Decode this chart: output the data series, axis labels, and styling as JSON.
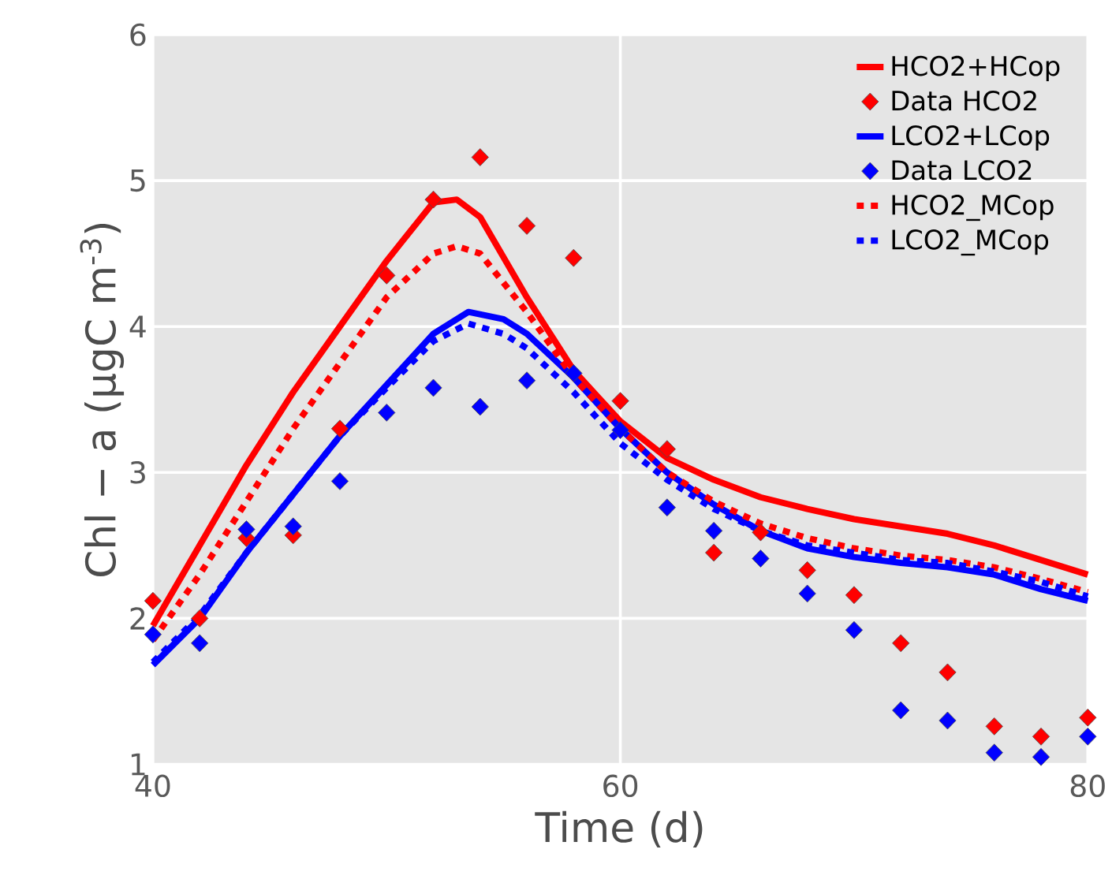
{
  "chart_data": {
    "type": "line",
    "xlabel": "Time (d)",
    "ylabel": "Chl − a (µgC m$^{-3}$)",
    "xlim": [
      40,
      80
    ],
    "ylim": [
      1,
      6
    ],
    "xticks": [
      40,
      60,
      80
    ],
    "yticks": [
      1,
      2,
      3,
      4,
      5,
      6
    ],
    "grid": true,
    "legend": "top right",
    "series": [
      {
        "name": "HCO2+HCop",
        "color": "#ff0000",
        "line_style": "solid",
        "x": [
          40,
          42,
          44,
          46,
          48,
          50,
          52,
          53,
          54,
          56,
          58,
          60,
          62,
          64,
          66,
          68,
          70,
          72,
          74,
          76,
          78,
          80
        ],
        "values": [
          1.95,
          2.5,
          3.05,
          3.55,
          4.0,
          4.45,
          4.85,
          4.87,
          4.75,
          4.2,
          3.7,
          3.35,
          3.1,
          2.95,
          2.83,
          2.75,
          2.68,
          2.63,
          2.58,
          2.5,
          2.4,
          2.3
        ]
      },
      {
        "name": "Data HCO2",
        "type": "scatter",
        "color": "#ff0000",
        "marker": "diamond",
        "x": [
          40,
          42,
          44,
          46,
          48,
          50,
          52,
          54,
          56,
          58,
          60,
          62,
          64,
          66,
          68,
          70,
          72,
          74,
          76,
          78,
          80
        ],
        "values": [
          2.12,
          2.0,
          2.55,
          2.57,
          3.3,
          4.35,
          4.87,
          5.16,
          4.69,
          4.47,
          3.49,
          3.16,
          2.45,
          2.59,
          2.33,
          2.16,
          1.83,
          1.63,
          1.26,
          1.19,
          1.32
        ]
      },
      {
        "name": "LCO2+LCop",
        "color": "#0000ff",
        "line_style": "solid",
        "x": [
          40,
          42,
          44,
          46,
          48,
          50,
          52,
          53.5,
          55,
          56,
          58,
          60,
          62,
          64,
          66,
          68,
          70,
          72,
          74,
          76,
          78,
          80
        ],
        "values": [
          1.68,
          2.0,
          2.45,
          2.85,
          3.25,
          3.6,
          3.95,
          4.1,
          4.05,
          3.95,
          3.65,
          3.3,
          3.0,
          2.78,
          2.6,
          2.48,
          2.42,
          2.38,
          2.35,
          2.3,
          2.2,
          2.12
        ]
      },
      {
        "name": "Data LCO2",
        "type": "scatter",
        "color": "#0000ff",
        "marker": "diamond",
        "x": [
          40,
          42,
          44,
          46,
          48,
          50,
          52,
          54,
          56,
          58,
          60,
          62,
          64,
          66,
          68,
          70,
          72,
          74,
          76,
          78,
          80
        ],
        "values": [
          1.89,
          1.83,
          2.61,
          2.63,
          2.94,
          3.41,
          3.58,
          3.45,
          3.63,
          3.68,
          3.29,
          2.76,
          2.6,
          2.41,
          2.17,
          1.92,
          1.37,
          1.3,
          1.08,
          1.05,
          1.19
        ]
      },
      {
        "name": "HCO2_MCop",
        "color": "#ff0000",
        "line_style": "dotted",
        "x": [
          40,
          42,
          44,
          46,
          48,
          50,
          52,
          53,
          54,
          56,
          58,
          60,
          62,
          64,
          66,
          68,
          70,
          72,
          74,
          76,
          78,
          80
        ],
        "values": [
          1.85,
          2.3,
          2.8,
          3.3,
          3.75,
          4.2,
          4.5,
          4.55,
          4.5,
          4.1,
          3.65,
          3.3,
          3.0,
          2.8,
          2.65,
          2.55,
          2.48,
          2.43,
          2.4,
          2.35,
          2.27,
          2.18
        ]
      },
      {
        "name": "LCO2_MCop",
        "color": "#0000ff",
        "line_style": "dotted",
        "x": [
          40,
          42,
          44,
          46,
          48,
          50,
          52,
          53.5,
          55,
          56,
          58,
          60,
          62,
          64,
          66,
          68,
          70,
          72,
          74,
          76,
          78,
          80
        ],
        "values": [
          1.7,
          2.02,
          2.45,
          2.85,
          3.25,
          3.58,
          3.9,
          4.02,
          3.95,
          3.85,
          3.55,
          3.2,
          2.95,
          2.75,
          2.6,
          2.5,
          2.45,
          2.4,
          2.38,
          2.32,
          2.25,
          2.15
        ]
      }
    ]
  }
}
